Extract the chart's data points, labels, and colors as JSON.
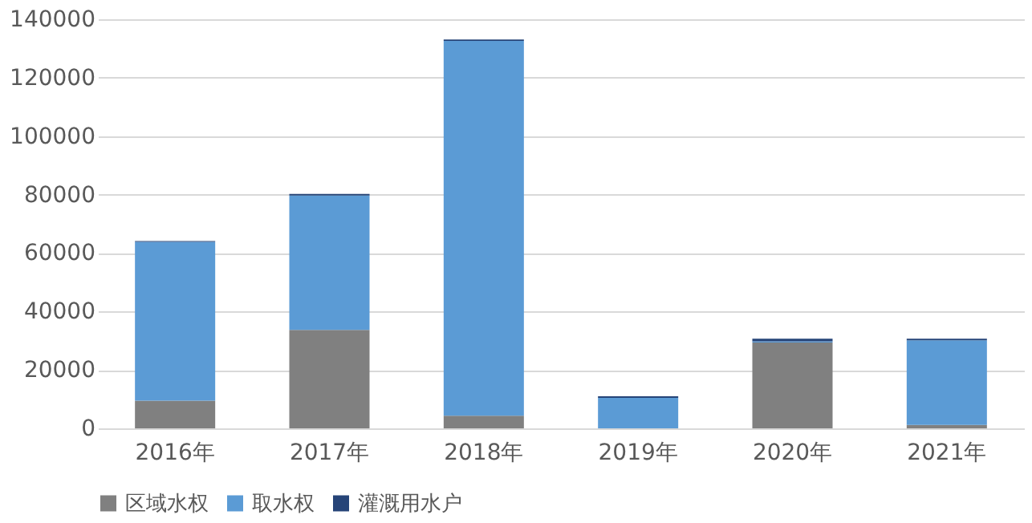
{
  "chart_data": {
    "type": "bar",
    "stacked": true,
    "categories": [
      "2016年",
      "2017年",
      "2018年",
      "2019年",
      "2020年",
      "2021年"
    ],
    "series": [
      {
        "name": "区域水权",
        "color": "#808080",
        "values": [
          9500,
          33700,
          4300,
          0,
          29400,
          1200
        ]
      },
      {
        "name": "取水权",
        "color": "#5b9bd5",
        "values": [
          54300,
          46000,
          128300,
          10400,
          400,
          28900
        ]
      },
      {
        "name": "灌溉用水户",
        "color": "#264478",
        "values": [
          300,
          500,
          500,
          600,
          900,
          600
        ]
      }
    ],
    "ylim": [
      0,
      140000
    ],
    "yticks": [
      0,
      20000,
      40000,
      60000,
      80000,
      100000,
      120000,
      140000
    ],
    "grid": "y",
    "legend": "bottom"
  }
}
